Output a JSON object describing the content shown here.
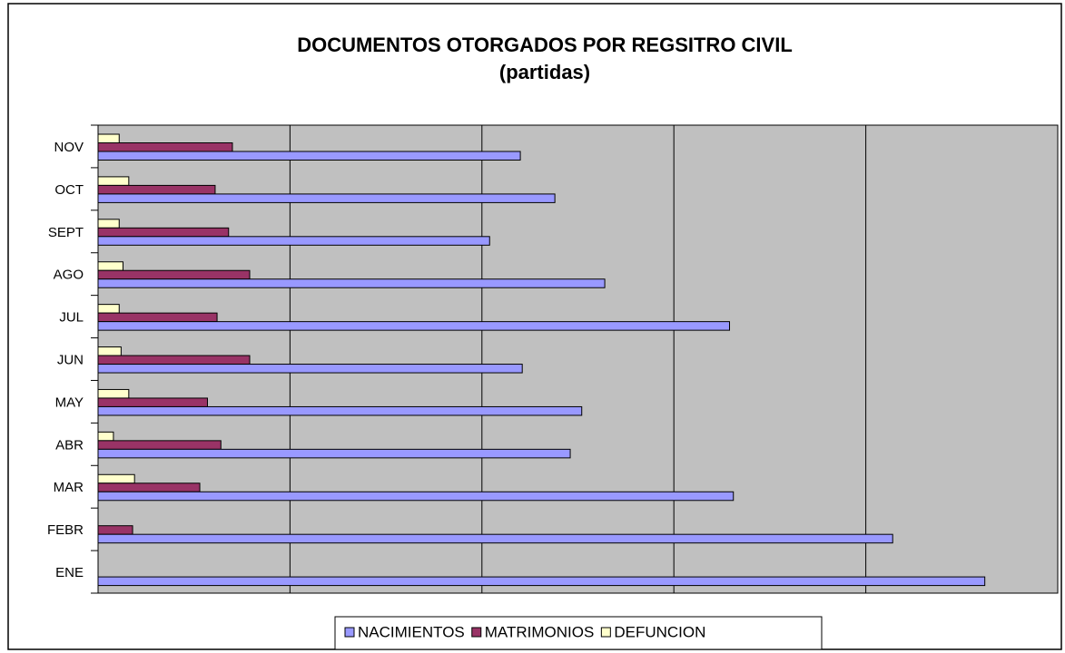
{
  "chart_data": {
    "type": "hbar",
    "title": "DOCUMENTOS OTORGADOS POR REGSITRO CIVIL",
    "subtitle": "(partidas)",
    "categories": [
      "ENE",
      "FEBR",
      "MAR",
      "ABR",
      "MAY",
      "JUN",
      "JUL",
      "AGO",
      "SEPT",
      "OCT",
      "NOV"
    ],
    "series": [
      {
        "name": "NACIMIENTOS",
        "color": "#9999ff",
        "values": [
          4.62,
          4.14,
          3.31,
          2.46,
          2.52,
          2.21,
          3.29,
          2.64,
          2.04,
          2.38,
          2.2
        ]
      },
      {
        "name": "MATRIMONIOS",
        "color": "#993366",
        "values": [
          0,
          0.18,
          0.53,
          0.64,
          0.57,
          0.79,
          0.62,
          0.79,
          0.68,
          0.61,
          0.7
        ]
      },
      {
        "name": "DEFUNCION",
        "color": "#ffffcc",
        "values": [
          0,
          0,
          0.19,
          0.08,
          0.16,
          0.12,
          0.11,
          0.13,
          0.11,
          0.16,
          0.11
        ]
      }
    ],
    "xlim": [
      0,
      5
    ],
    "xgrid": [
      1,
      2,
      3,
      4
    ],
    "grid": true,
    "plot_background": "#c0c0c0",
    "legend": "bottom"
  }
}
